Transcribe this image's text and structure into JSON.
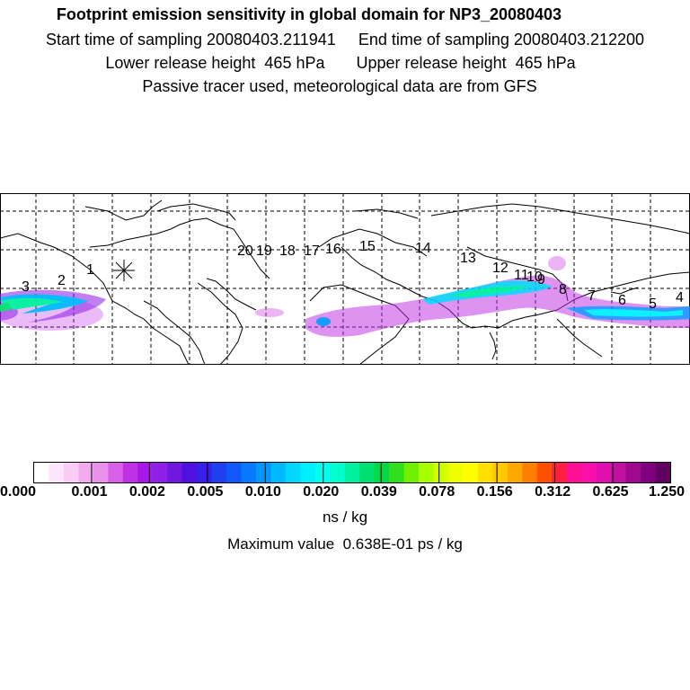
{
  "header": {
    "title": "Footprint emission sensitivity in global domain for NP3_20080403",
    "sampling_line": "Start time of sampling 20080403.211941     End time of sampling 20080403.212200",
    "height_line": "Lower release height  465 hPa       Upper release height  465 hPa",
    "note_line": "Passive tracer used, meteorological data are from GFS"
  },
  "map": {
    "release_marker": "asterisk-icon",
    "day_labels": [
      "1",
      "2",
      "3",
      "4",
      "5",
      "6",
      "7",
      "8",
      "9",
      "10",
      "11",
      "12",
      "13",
      "14",
      "15",
      "16",
      "17",
      "18",
      "19",
      "20"
    ]
  },
  "colorbar": {
    "tick_labels": [
      "0.000",
      "0.001",
      "0.002",
      "0.005",
      "0.010",
      "0.020",
      "0.039",
      "0.078",
      "0.156",
      "0.312",
      "0.625",
      "1.250"
    ],
    "colors": [
      "#ffffff",
      "#fde6fb",
      "#f9ccf5",
      "#f2aaee",
      "#e890ea",
      "#d860e6",
      "#c030e4",
      "#a818e8",
      "#9020e8",
      "#7018e0",
      "#5010e0",
      "#3820e8",
      "#2040f0",
      "#1058f8",
      "#0878ff",
      "#0098ff",
      "#00b8ff",
      "#00d8ff",
      "#00f0ff",
      "#00ffee",
      "#00ffcc",
      "#00f0a0",
      "#00e070",
      "#00d848",
      "#30e020",
      "#70f000",
      "#a8ff00",
      "#d0ff00",
      "#f0ff00",
      "#ffff00",
      "#ffe000",
      "#ffc800",
      "#ffa800",
      "#ff8000",
      "#ff5000",
      "#ff2040",
      "#ff1090",
      "#f810a8",
      "#e010b0",
      "#c010a0",
      "#a00890",
      "#800080",
      "#600060"
    ],
    "units": "ns / kg",
    "max_value": "Maximum value  0.638E-01 ps / kg"
  }
}
